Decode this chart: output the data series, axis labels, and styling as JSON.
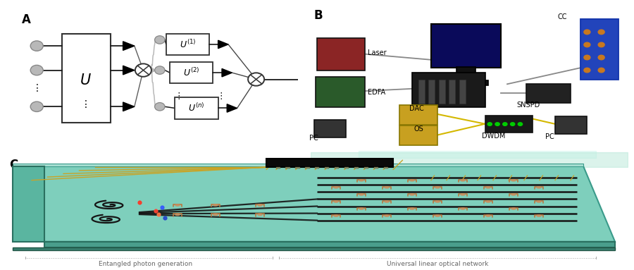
{
  "fig_width": 9.0,
  "fig_height": 3.83,
  "dpi": 100,
  "bg_color": "#ffffff",
  "panel_A_label": "A",
  "panel_B_label": "B",
  "panel_C_label": "C",
  "chip_teal": "#7ecfbc",
  "chip_teal_dark": "#5ab5a0",
  "chip_teal_light": "#a8dfd2",
  "chip_teal_side": "#4a9e8c",
  "chip_bottom": "#3a8070",
  "wire_dark": "#1a1a1a",
  "gold_color": "#c8a428",
  "circle_gray": "#b8b8b8",
  "circle_edge": "#888888",
  "text_bottom_left": "Entangled photon generation",
  "text_bottom_right": "Universal linear optical network",
  "laser_color": "#8b2525",
  "edfa_color": "#2a5a2a",
  "dac_color": "#1a1a1a",
  "cc_color": "#2244bb",
  "snspd_color": "#222222",
  "dwdm_color": "#1a1a1a",
  "os_color_1": "#c8a020",
  "os_color_2": "#c8a020",
  "pc_color": "#333333",
  "monitor_color": "#0a0a5a",
  "yellow_fiber": "#d4b800",
  "gray_wire": "#888888"
}
